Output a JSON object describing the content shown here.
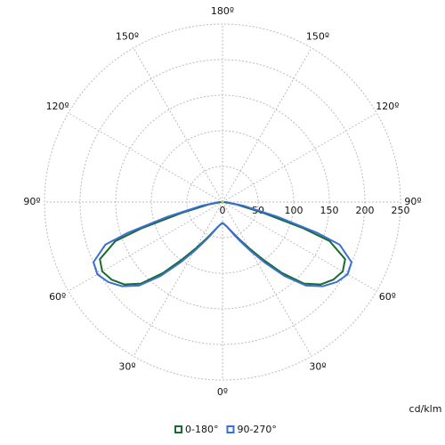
{
  "chart_data": {
    "type": "polar",
    "unit_label": "cd/klm",
    "rlim": [
      0,
      250
    ],
    "rticks": [
      0,
      50,
      100,
      150,
      200,
      250
    ],
    "angle_ticks": [
      {
        "value": 0,
        "label": "0º"
      },
      {
        "value": 30,
        "label": "30º"
      },
      {
        "value": 60,
        "label": "60º"
      },
      {
        "value": 90,
        "label": "90º"
      },
      {
        "value": 120,
        "label": "120º"
      },
      {
        "value": 150,
        "label": "150º"
      },
      {
        "value": 180,
        "label": "180º"
      }
    ],
    "grid": true,
    "legend": "bottom",
    "angles": [
      0,
      10,
      20,
      25,
      30,
      35,
      40,
      45,
      50,
      55,
      60,
      65,
      70,
      72,
      75,
      80,
      90
    ],
    "series": [
      {
        "name": "0-180°",
        "color": "#1a6b2e",
        "values": [
          29,
          35,
          48,
          59,
          75,
          98,
          130,
          162,
          180,
          190,
          195,
          190,
          160,
          120,
          60,
          20,
          2
        ]
      },
      {
        "name": "90-270°",
        "color": "#3a6fd8",
        "values": [
          29,
          35,
          50,
          62,
          80,
          104,
          136,
          166,
          184,
          196,
          203,
          200,
          175,
          140,
          80,
          30,
          5
        ]
      }
    ]
  }
}
